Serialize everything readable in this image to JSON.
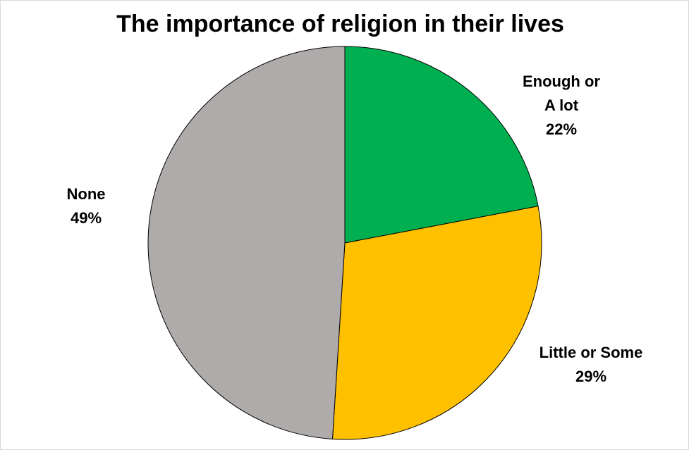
{
  "chart_data": {
    "type": "pie",
    "title": "The importance of religion in their lives",
    "slices": [
      {
        "label_lines": [
          "Enough or",
          "A lot"
        ],
        "value": 22,
        "value_label": "22%",
        "color": "#00b050"
      },
      {
        "label_lines": [
          "Little or Some"
        ],
        "value": 29,
        "value_label": "29%",
        "color": "#ffc000"
      },
      {
        "label_lines": [
          "None"
        ],
        "value": 49,
        "value_label": "49%",
        "color": "#afabab"
      }
    ],
    "start": "12 o'clock",
    "direction": "clockwise",
    "legend": "none",
    "slice_border_color": "#000000"
  }
}
